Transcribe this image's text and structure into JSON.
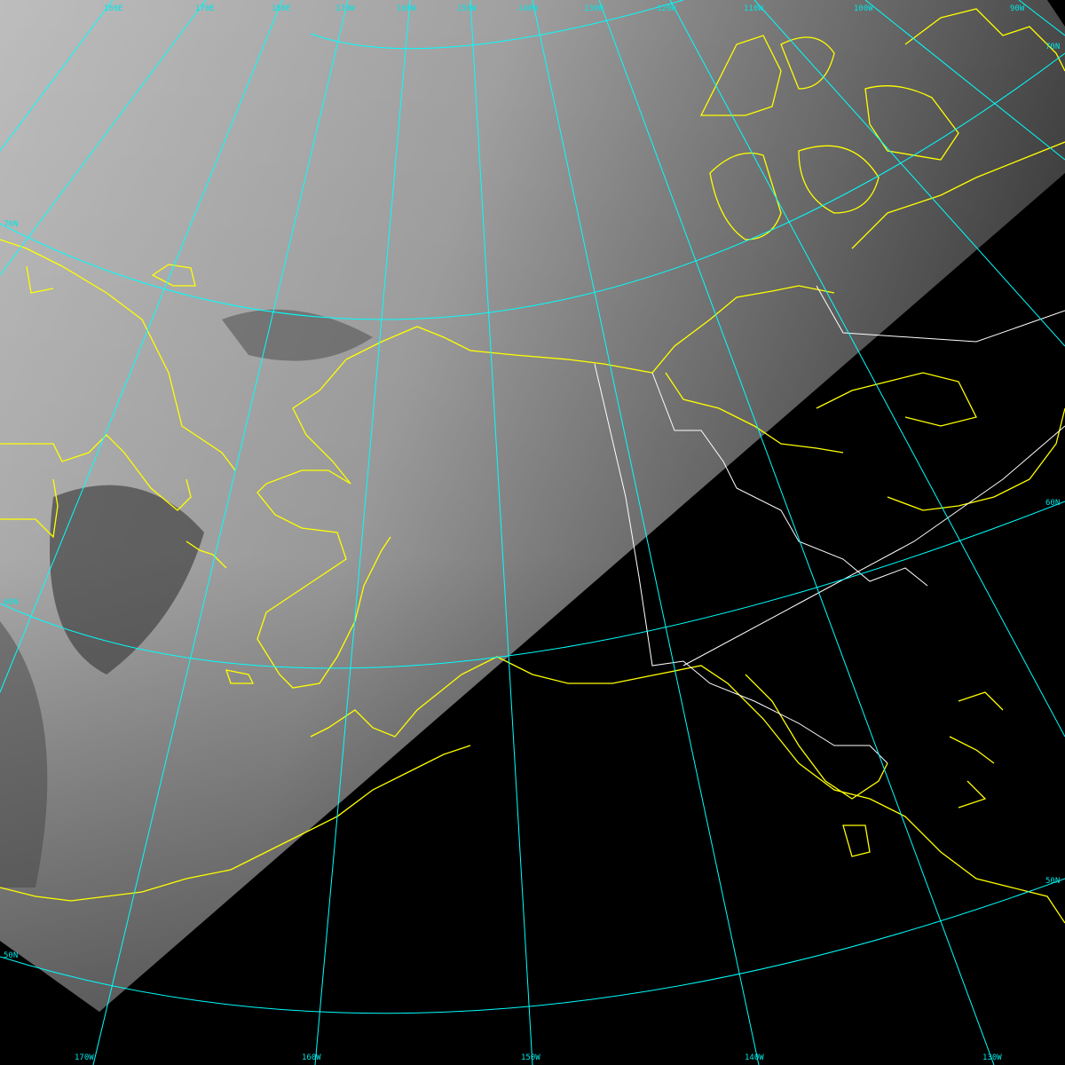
{
  "colors": {
    "graticule": "#00ffff",
    "coastline": "#ffff00",
    "borders": "#ffffff",
    "background": "#000000"
  },
  "top_labels": [
    "160E",
    "170E",
    "180E",
    "170W",
    "160W",
    "150W",
    "140W",
    "130W",
    "120W",
    "110W",
    "100W",
    "90W"
  ],
  "bottom_labels": [
    "170W",
    "160W",
    "150W",
    "140W",
    "130W"
  ],
  "left_labels": [
    "70N",
    "60N",
    "50N"
  ],
  "right_labels": [
    "70N",
    "60N",
    "50N"
  ]
}
